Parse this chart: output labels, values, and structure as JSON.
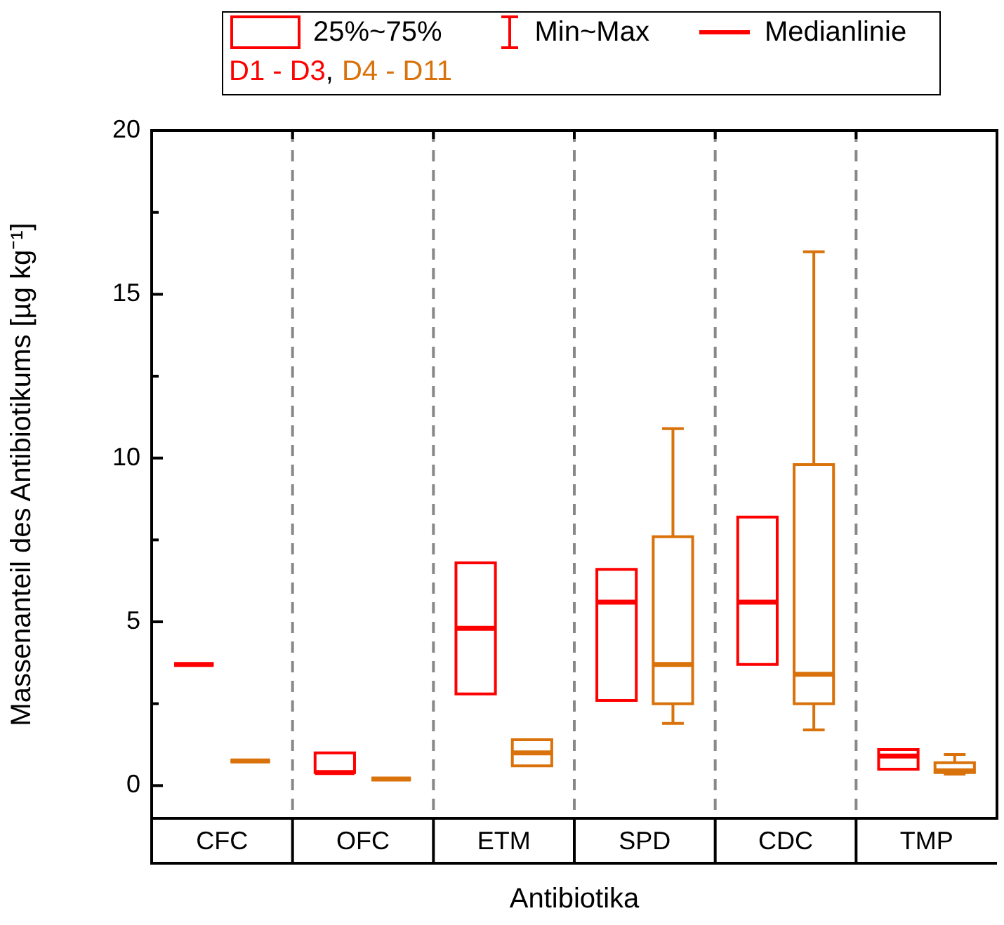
{
  "chart_data": {
    "type": "box",
    "xlabel": "Antibiotika",
    "ylabel": "Massenanteil des Antibiotikums [µg kg⁻¹]",
    "categories": [
      "CFC",
      "OFC",
      "ETM",
      "SPD",
      "CDC",
      "TMP"
    ],
    "series": [
      {
        "name": "D1 - D3",
        "color": "#ff0000",
        "boxes": [
          {
            "low": 3.7,
            "q1": 3.7,
            "median": 3.7,
            "q3": 3.7,
            "high": 3.7
          },
          {
            "low": 0.4,
            "q1": 0.4,
            "median": 0.4,
            "q3": 1.0,
            "high": 1.0
          },
          {
            "low": 2.8,
            "q1": 2.8,
            "median": 4.8,
            "q3": 6.8,
            "high": 6.8
          },
          {
            "low": 2.6,
            "q1": 2.6,
            "median": 5.6,
            "q3": 6.6,
            "high": 6.6
          },
          {
            "low": 3.7,
            "q1": 3.7,
            "median": 5.6,
            "q3": 8.2,
            "high": 8.2
          },
          {
            "low": 0.5,
            "q1": 0.5,
            "median": 0.9,
            "q3": 1.1,
            "high": 1.1
          }
        ]
      },
      {
        "name": "D4 - D11",
        "color": "#d9720a",
        "boxes": [
          {
            "low": 0.75,
            "q1": 0.75,
            "median": 0.75,
            "q3": 0.75,
            "high": 0.75
          },
          {
            "low": 0.2,
            "q1": 0.2,
            "median": 0.2,
            "q3": 0.2,
            "high": 0.2
          },
          {
            "low": 0.6,
            "q1": 0.6,
            "median": 1.0,
            "q3": 1.4,
            "high": 1.4
          },
          {
            "low": 1.9,
            "q1": 2.5,
            "median": 3.7,
            "q3": 7.6,
            "high": 10.9
          },
          {
            "low": 1.7,
            "q1": 2.5,
            "median": 3.4,
            "q3": 9.8,
            "high": 16.3
          },
          {
            "low": 0.35,
            "q1": 0.4,
            "median": 0.45,
            "q3": 0.7,
            "high": 0.95
          }
        ]
      }
    ],
    "ylim": [
      -1,
      20
    ],
    "yticks": [
      0,
      5,
      10,
      15,
      20
    ],
    "grid": false,
    "legend": "top",
    "annotations": [
      "25%~75%",
      "Min~Max",
      "Medianlinie",
      ","
    ]
  }
}
